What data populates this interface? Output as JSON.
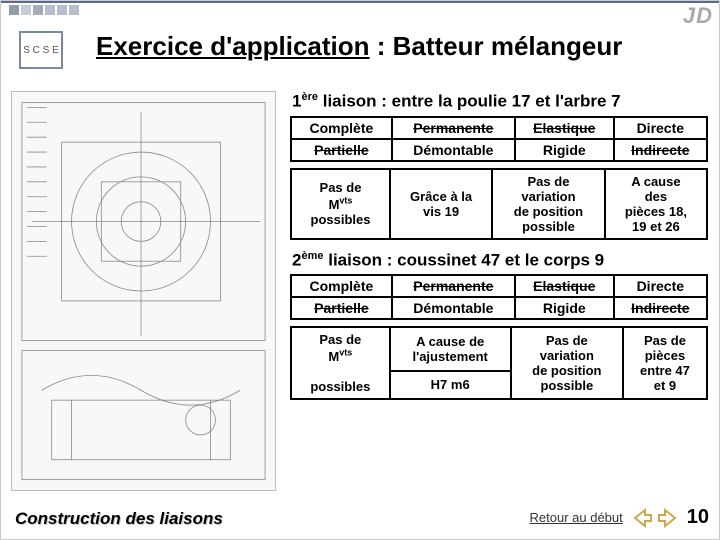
{
  "brand": "JD",
  "logoText": "S C S E",
  "title": {
    "main": "Exercice d'application",
    "sub": " : Batteur mélangeur"
  },
  "liaison1": {
    "ord": "1",
    "ordSuffix": "ère",
    "rest": " liaison : entre la poulie 17 et l'arbre 7"
  },
  "table1a": {
    "r1": [
      "Complète",
      "Permanente",
      "Elastique",
      "Directe"
    ],
    "r2": [
      "Partielle",
      "Démontable",
      "Rigide",
      "Indirecte"
    ],
    "strike1": [
      0,
      1,
      1,
      0
    ],
    "strike2": [
      1,
      0,
      0,
      1
    ]
  },
  "table1b": {
    "c1a": "Pas de",
    "c1b": "M",
    "c1bsup": "vts",
    "c1c": "possibles",
    "c2a": "Grâce à la",
    "c2b": "vis 19",
    "c3a": "Pas de",
    "c3b": "variation",
    "c3c": "de position",
    "c3d": "possible",
    "c4a": "A cause",
    "c4b": "des",
    "c4c": "pièces 18,",
    "c4d": "19 et 26"
  },
  "liaison2": {
    "ord": "2",
    "ordSuffix": "ème",
    "rest": " liaison : coussinet 47 et le corps 9"
  },
  "table2a": {
    "r1": [
      "Complète",
      "Permanente",
      "Elastique",
      "Directe"
    ],
    "r2": [
      "Partielle",
      "Démontable",
      "Rigide",
      "Indirecte"
    ],
    "strike1": [
      0,
      1,
      1,
      0
    ],
    "strike2": [
      1,
      0,
      0,
      1
    ]
  },
  "table2b": {
    "c1a": "Pas de",
    "c1b": "M",
    "c1bsup": "vts",
    "c1c": "possibles",
    "c2a": "A cause de",
    "c2b": "l'ajustement",
    "c2c": "H7 m6",
    "c3a": "Pas de",
    "c3b": "variation",
    "c3c": "de position",
    "c3d": "possible",
    "c4a": "Pas de",
    "c4b": "pièces",
    "c4c": "entre 47",
    "c4d": "et 9"
  },
  "footerLeft": "Construction des liaisons",
  "retour": "Retour au début",
  "pageNum": "10",
  "colors": {
    "accent": "#5a6a8a",
    "arrow": "#c9a94a"
  }
}
